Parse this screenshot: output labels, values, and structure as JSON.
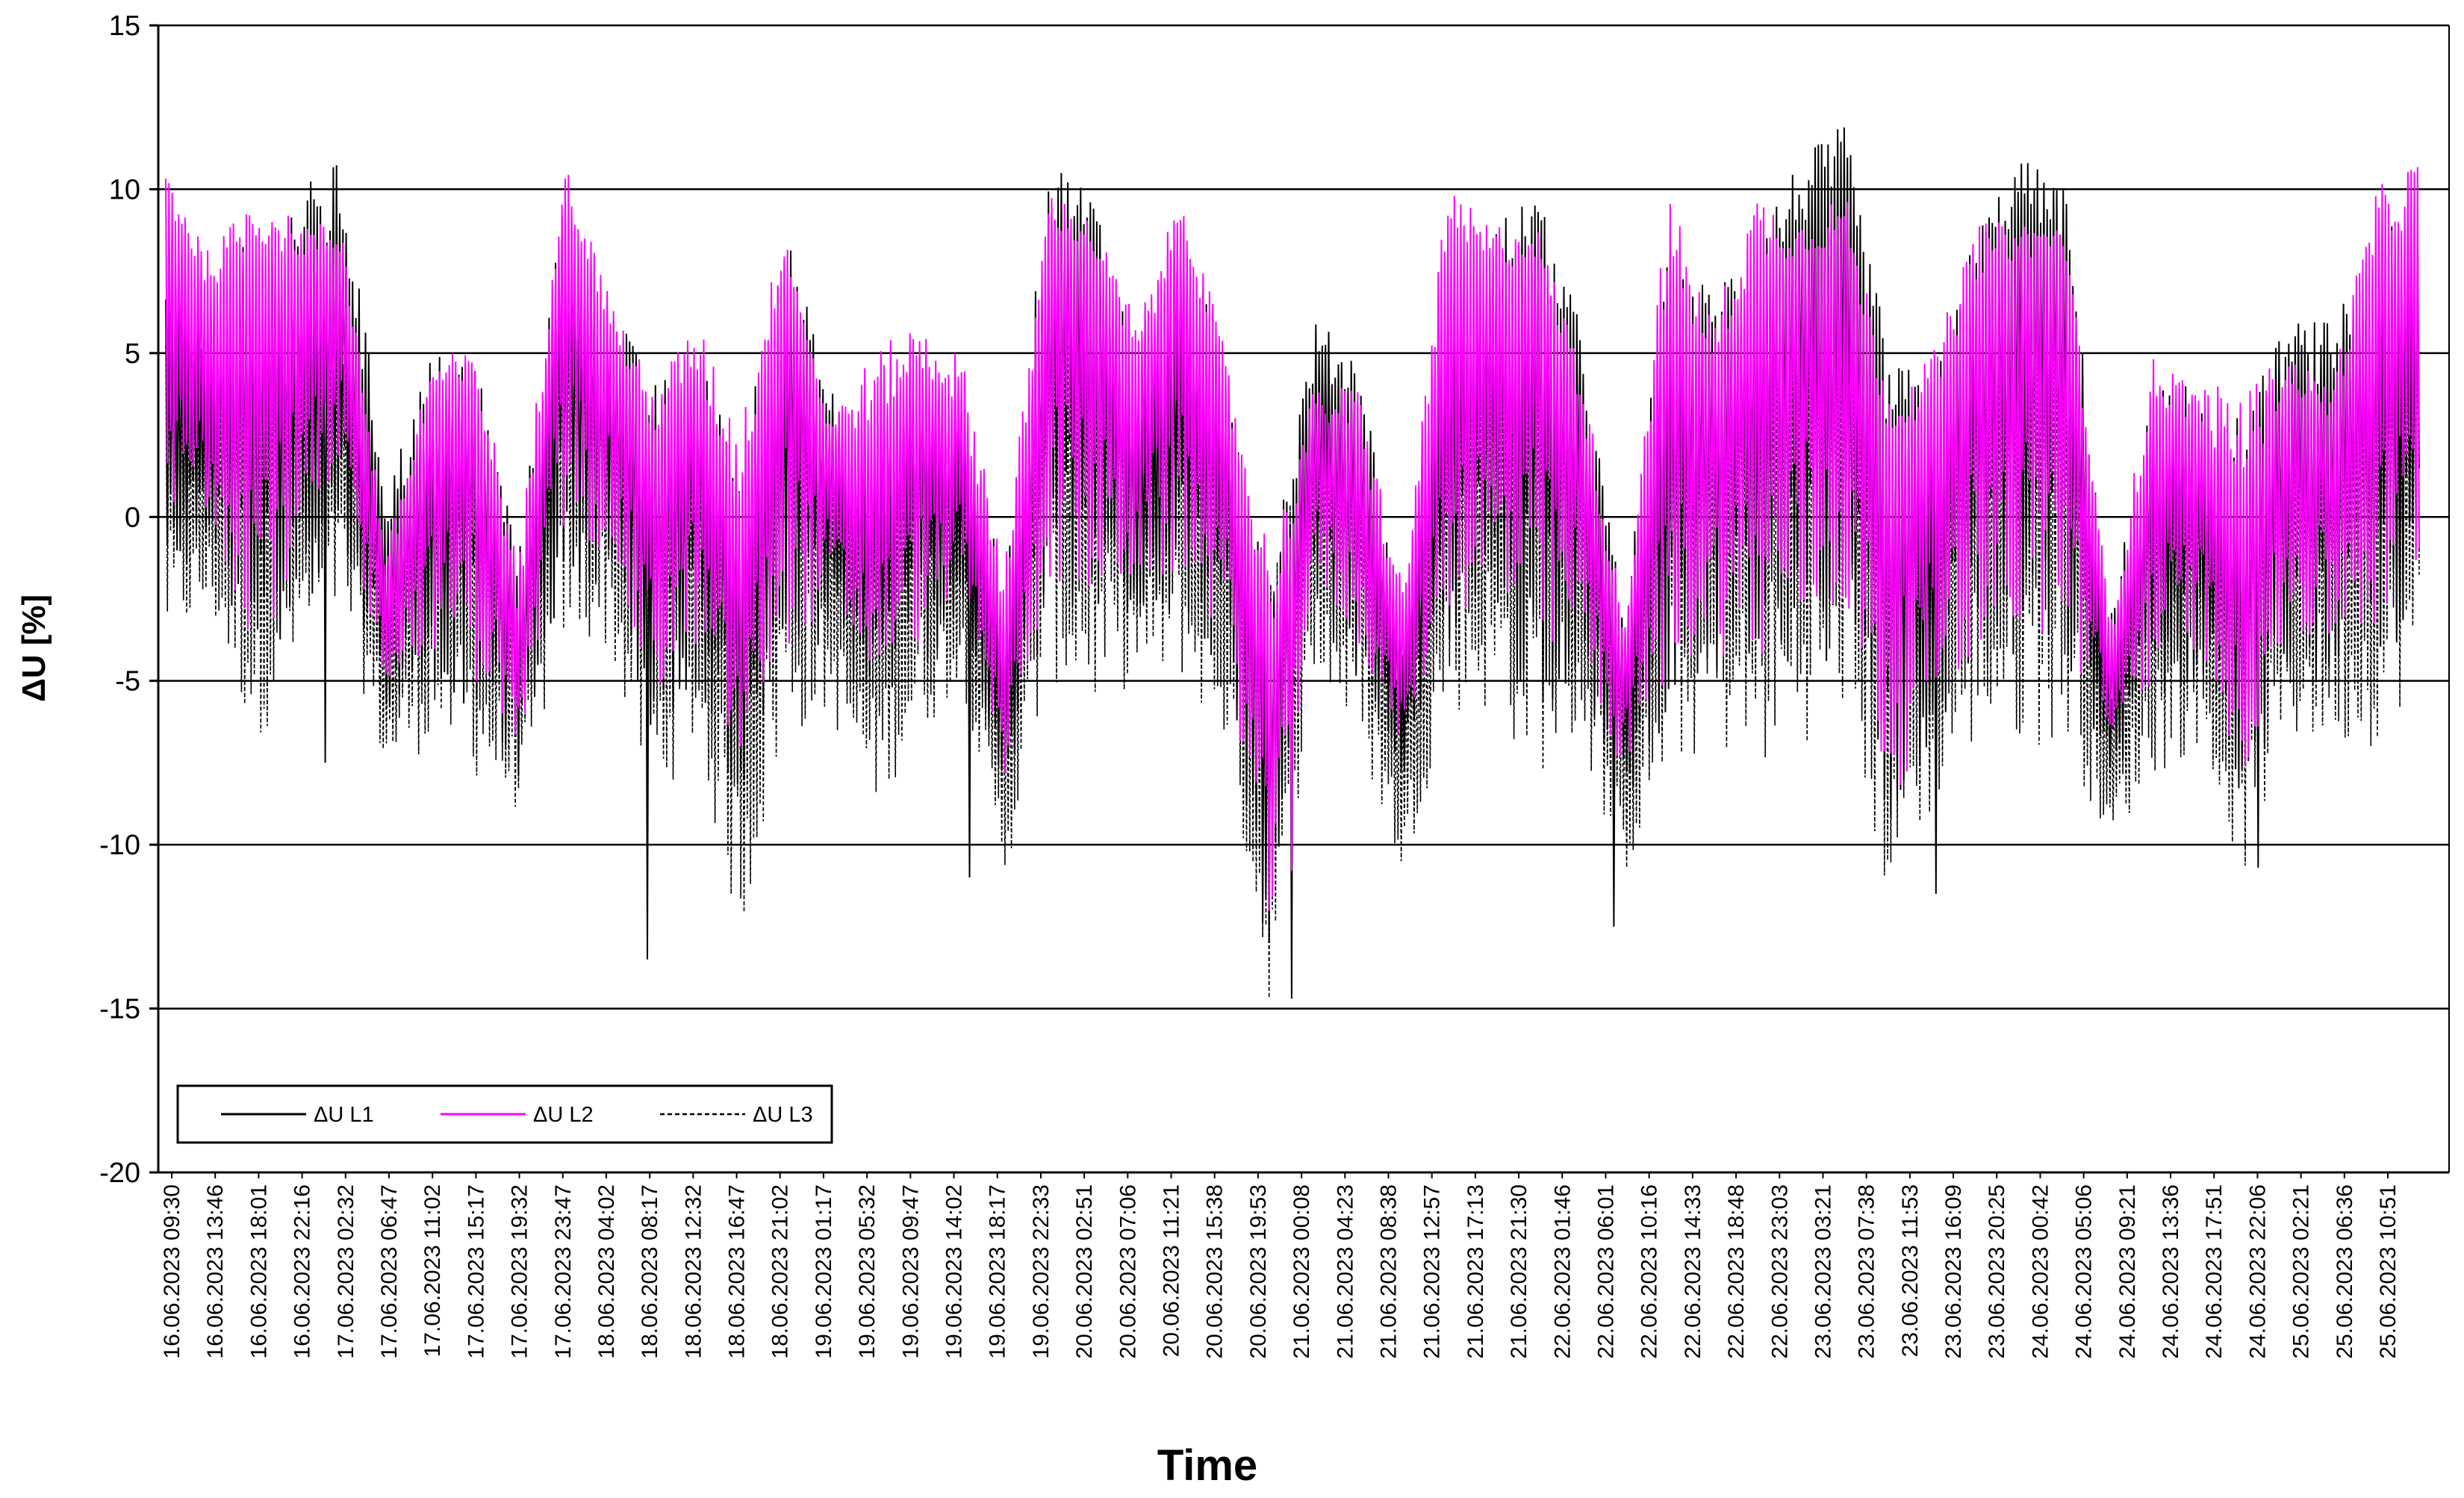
{
  "chart_data": {
    "type": "line",
    "title": "",
    "xlabel": "Time",
    "ylabel": "ΔU [%]",
    "ylim": [
      -20,
      15
    ],
    "yticks": [
      15,
      10,
      5,
      0,
      -5,
      -10,
      -15,
      -20
    ],
    "grid": {
      "horizontal": true,
      "vertical": false
    },
    "legend_position": "bottom-left",
    "x_tick_labels": [
      "16.06.2023 09:30",
      "16.06.2023 13:46",
      "16.06.2023 18:01",
      "16.06.2023 22:16",
      "17.06.2023 02:32",
      "17.06.2023 06:47",
      "17.06.2023 11:02",
      "17.06.2023 15:17",
      "17.06.2023 19:32",
      "17.06.2023 23:47",
      "18.06.2023 04:02",
      "18.06.2023 08:17",
      "18.06.2023 12:32",
      "18.06.2023 16:47",
      "18.06.2023 21:02",
      "19.06.2023 01:17",
      "19.06.2023 05:32",
      "19.06.2023 09:47",
      "19.06.2023 14:02",
      "19.06.2023 18:17",
      "19.06.2023 22:33",
      "20.06.2023 02:51",
      "20.06.2023 07:06",
      "20.06.2023 11:21",
      "20.06.2023 15:38",
      "20.06.2023 19:53",
      "21.06.2023 00:08",
      "21.06.2023 04:23",
      "21.06.2023 08:38",
      "21.06.2023 12:57",
      "21.06.2023 17:13",
      "21.06.2023 21:30",
      "22.06.2023 01:46",
      "22.06.2023 06:01",
      "22.06.2023 10:16",
      "22.06.2023 14:33",
      "22.06.2023 18:48",
      "22.06.2023 23:03",
      "23.06.2023 03:21",
      "23.06.2023 07:38",
      "23.06.2023 11:53",
      "23.06.2023 16:09",
      "23.06.2023 20:25",
      "24.06.2023 00:42",
      "24.06.2023 05:06",
      "24.06.2023 09:21",
      "24.06.2023 13:36",
      "24.06.2023 17:51",
      "24.06.2023 22:06",
      "25.06.2023 02:21",
      "25.06.2023 06:36",
      "25.06.2023 10:51"
    ],
    "series": [
      {
        "name": "ΔU L1",
        "color": "#000000",
        "style": "solid",
        "envelope": {
          "upper": [
            7,
            6,
            9,
            10,
            11,
            1,
            5,
            5,
            -1,
            10,
            7,
            4,
            5,
            2,
            9,
            4,
            3,
            5,
            4,
            -2,
            11,
            10,
            5,
            9,
            5,
            -1,
            6,
            5,
            -3,
            7,
            9,
            10,
            6,
            -3,
            8,
            7,
            9,
            11,
            12,
            5,
            4,
            9,
            11,
            10,
            -3,
            4,
            4,
            3,
            6,
            6,
            9,
            10
          ],
          "lower": [
            -2,
            -1,
            -5,
            -3,
            -1,
            -6,
            -5,
            -6,
            -8,
            -2,
            -2,
            -7,
            -5,
            -9,
            -5,
            -4,
            -6,
            -5,
            -3,
            -9,
            -3,
            -4,
            -3,
            -3,
            -5,
            -14,
            -3,
            -5,
            -8,
            -4,
            -4,
            -6,
            -5,
            -9,
            -6,
            -5,
            -6,
            -5,
            -4,
            -10,
            -7,
            -5,
            -5,
            -5,
            -8,
            -6,
            -5,
            -9,
            -5,
            -5,
            -5,
            -3
          ],
          "base": [
            4,
            3,
            4,
            5,
            6,
            -2,
            1,
            2,
            -4,
            6,
            3,
            0,
            2,
            -3,
            5,
            1,
            -1,
            2,
            1,
            -6,
            7,
            6,
            2,
            5,
            1,
            -7,
            3,
            2,
            -6,
            4,
            5,
            6,
            3,
            -6,
            3,
            3,
            4,
            7,
            8,
            0,
            1,
            5,
            8,
            7,
            -6,
            1,
            1,
            -3,
            2,
            2,
            4,
            5
          ]
        },
        "spikes_min": [
          -7.5,
          -13.5,
          -11,
          -14.7,
          -12.5,
          -11.5,
          -10.7
        ]
      },
      {
        "name": "ΔU L2",
        "color": "#ff00ff",
        "style": "solid",
        "envelope": {
          "upper": [
            11,
            8,
            10,
            9,
            9,
            -1,
            5,
            5,
            -1,
            11,
            7,
            4,
            6,
            3,
            9,
            3,
            5,
            6,
            5,
            -1,
            10,
            9,
            6,
            10,
            5,
            -1,
            4,
            4,
            -2,
            10,
            9,
            9,
            5,
            -3,
            10,
            6,
            10,
            9,
            10,
            4,
            5,
            9,
            9,
            9,
            -3,
            5,
            4,
            4,
            5,
            4,
            10,
            11
          ],
          "lower": [
            -1,
            0,
            -4,
            -2,
            0,
            -5,
            -4,
            -5,
            -7,
            -1,
            -1,
            -6,
            -4,
            -8,
            -4,
            -3,
            -5,
            -4,
            -2,
            -8,
            -2,
            -3,
            -2,
            -2,
            -4,
            -13,
            -2,
            -4,
            -7,
            -3,
            -3,
            -5,
            -4,
            -8,
            -5,
            -4,
            -5,
            -4,
            -3,
            -9,
            -6,
            -4,
            -4,
            -4,
            -7,
            -5,
            -4,
            -8,
            -4,
            -4,
            -4,
            -2
          ],
          "base": [
            8,
            6,
            7,
            7,
            7,
            -3,
            2,
            3,
            -5,
            9,
            5,
            1,
            3,
            -2,
            7,
            2,
            1,
            3,
            2,
            -5,
            8,
            7,
            3,
            8,
            2,
            -6,
            2,
            1,
            -5,
            7,
            6,
            7,
            2,
            -5,
            5,
            3,
            6,
            7,
            7,
            1,
            2,
            6,
            7,
            7,
            -5,
            2,
            2,
            -2,
            3,
            2,
            6,
            8
          ]
        },
        "spikes_min": [
          -10.8
        ]
      },
      {
        "name": "ΔU L3",
        "color": "#000000",
        "style": "dashed",
        "envelope": {
          "upper": [
            6,
            5,
            7,
            6,
            6,
            -2,
            4,
            4,
            -2,
            8,
            6,
            3,
            4,
            1,
            7,
            3,
            2,
            4,
            3,
            -3,
            7,
            6,
            4,
            6,
            4,
            -2,
            4,
            3,
            -4,
            5,
            6,
            6,
            4,
            -4,
            5,
            5,
            6,
            7,
            7,
            3,
            3,
            6,
            7,
            7,
            -4,
            3,
            3,
            2,
            4,
            4,
            6,
            7
          ],
          "lower": [
            -4,
            -3,
            -7,
            -5,
            -3,
            -8,
            -7,
            -8,
            -9,
            -4,
            -4,
            -9,
            -7,
            -13,
            -7,
            -6,
            -9,
            -7,
            -5,
            -11,
            -5,
            -6,
            -5,
            -5,
            -7,
            -15,
            -5,
            -7,
            -11,
            -6,
            -6,
            -8,
            -7,
            -11,
            -8,
            -7,
            -8,
            -7,
            -6,
            -12,
            -9,
            -7,
            -7,
            -7,
            -10,
            -8,
            -7,
            -11,
            -7,
            -7,
            -7,
            -5
          ],
          "base": [
            2,
            1,
            2,
            3,
            3,
            -4,
            0,
            0,
            -6,
            4,
            2,
            -2,
            0,
            -5,
            3,
            -1,
            -3,
            0,
            -1,
            -8,
            4,
            3,
            0,
            2,
            -1,
            -9,
            1,
            0,
            -8,
            2,
            2,
            3,
            1,
            -8,
            1,
            1,
            2,
            3,
            3,
            -2,
            -1,
            2,
            3,
            3,
            -8,
            -1,
            -1,
            -5,
            0,
            0,
            1,
            2
          ]
        }
      }
    ]
  }
}
